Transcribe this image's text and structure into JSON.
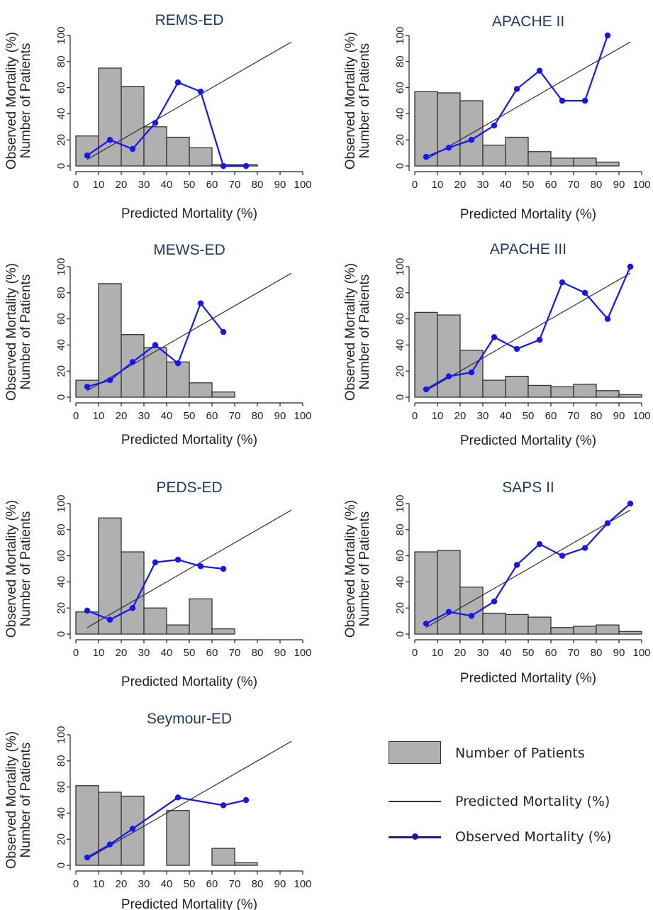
{
  "colors": {
    "bar_fill": "#b0b0b0",
    "bar_stroke": "#333333",
    "reference_line": "#333333",
    "observed": "#1414ff",
    "title": "#1f3864",
    "axis_text": "#222222"
  },
  "legend": {
    "patients": "Number of Patients",
    "predicted": "Predicted Mortality (%)",
    "observed": "Observed Mortality (%)"
  },
  "chart_data": [
    {
      "type": "bar+line",
      "title": "REMS-ED",
      "xlabel": "Predicted Mortality (%)",
      "ylabel_1": "Observed Mortality (%)",
      "ylabel_2": "Number of Patients",
      "xlim": [
        0,
        100
      ],
      "ylim": [
        0,
        100
      ],
      "xticks": [
        "0",
        "10",
        "20",
        "30",
        "40",
        "50",
        "60",
        "70",
        "80",
        "90",
        "100"
      ],
      "yticks": [
        "0",
        "20",
        "40",
        "60",
        "80",
        "100"
      ],
      "bars": [
        {
          "start": 0,
          "end": 10,
          "value": 23
        },
        {
          "start": 10,
          "end": 20,
          "value": 75
        },
        {
          "start": 20,
          "end": 30,
          "value": 61
        },
        {
          "start": 30,
          "end": 40,
          "value": 30
        },
        {
          "start": 40,
          "end": 50,
          "value": 22
        },
        {
          "start": 50,
          "end": 60,
          "value": 14
        },
        {
          "start": 60,
          "end": 70,
          "value": 1
        },
        {
          "start": 70,
          "end": 80,
          "value": 1
        }
      ],
      "observed": {
        "x": [
          5,
          15,
          25,
          35,
          45,
          55,
          65,
          75
        ],
        "y": [
          8,
          20,
          13,
          33,
          64,
          57,
          0,
          0
        ]
      },
      "reference": {
        "x": [
          5,
          95
        ],
        "y": [
          5,
          95
        ]
      }
    },
    {
      "type": "bar+line",
      "title": "APACHE II",
      "xlabel": "Predicted Mortality (%)",
      "ylabel_1": "Observed Mortality (%)",
      "ylabel_2": "Number of Patients",
      "xlim": [
        0,
        100
      ],
      "ylim": [
        0,
        100
      ],
      "xticks": [
        "0",
        "10",
        "20",
        "30",
        "40",
        "50",
        "60",
        "70",
        "80",
        "90",
        "100"
      ],
      "yticks": [
        "0",
        "20",
        "40",
        "60",
        "80",
        "100"
      ],
      "bars": [
        {
          "start": 0,
          "end": 10,
          "value": 57
        },
        {
          "start": 10,
          "end": 20,
          "value": 56
        },
        {
          "start": 20,
          "end": 30,
          "value": 50
        },
        {
          "start": 30,
          "end": 40,
          "value": 16
        },
        {
          "start": 40,
          "end": 50,
          "value": 22
        },
        {
          "start": 50,
          "end": 60,
          "value": 11
        },
        {
          "start": 60,
          "end": 70,
          "value": 6
        },
        {
          "start": 70,
          "end": 80,
          "value": 6
        },
        {
          "start": 80,
          "end": 90,
          "value": 3
        }
      ],
      "observed": {
        "x": [
          5,
          15,
          25,
          35,
          45,
          55,
          65,
          75,
          85
        ],
        "y": [
          7,
          14,
          20,
          31,
          59,
          73,
          50,
          50,
          100
        ]
      },
      "reference": {
        "x": [
          5,
          95
        ],
        "y": [
          5,
          95
        ]
      }
    },
    {
      "type": "bar+line",
      "title": "MEWS-ED",
      "xlabel": "Predicted Mortality (%)",
      "ylabel_1": "Observed Mortality (%)",
      "ylabel_2": "Number of Patients",
      "xlim": [
        0,
        100
      ],
      "ylim": [
        0,
        100
      ],
      "xticks": [
        "0",
        "10",
        "20",
        "30",
        "40",
        "50",
        "60",
        "70",
        "80",
        "90",
        "100"
      ],
      "yticks": [
        "0",
        "20",
        "40",
        "60",
        "80",
        "100"
      ],
      "bars": [
        {
          "start": 0,
          "end": 10,
          "value": 13
        },
        {
          "start": 10,
          "end": 20,
          "value": 87
        },
        {
          "start": 20,
          "end": 30,
          "value": 48
        },
        {
          "start": 30,
          "end": 40,
          "value": 38
        },
        {
          "start": 40,
          "end": 50,
          "value": 27
        },
        {
          "start": 50,
          "end": 60,
          "value": 11
        },
        {
          "start": 60,
          "end": 70,
          "value": 4
        }
      ],
      "observed": {
        "x": [
          5,
          15,
          25,
          35,
          45,
          55,
          65
        ],
        "y": [
          8,
          13,
          27,
          40,
          26,
          72,
          50
        ]
      },
      "reference": {
        "x": [
          5,
          95
        ],
        "y": [
          5,
          95
        ]
      }
    },
    {
      "type": "bar+line",
      "title": "APACHE III",
      "xlabel": "Predicted Mortality (%)",
      "ylabel_1": "Observed Mortality (%)",
      "ylabel_2": "Number of Patients",
      "xlim": [
        0,
        100
      ],
      "ylim": [
        0,
        100
      ],
      "xticks": [
        "0",
        "10",
        "20",
        "30",
        "40",
        "50",
        "60",
        "70",
        "80",
        "90",
        "100"
      ],
      "yticks": [
        "0",
        "20",
        "40",
        "60",
        "80",
        "100"
      ],
      "bars": [
        {
          "start": 0,
          "end": 10,
          "value": 65
        },
        {
          "start": 10,
          "end": 20,
          "value": 63
        },
        {
          "start": 20,
          "end": 30,
          "value": 36
        },
        {
          "start": 30,
          "end": 40,
          "value": 13
        },
        {
          "start": 40,
          "end": 50,
          "value": 16
        },
        {
          "start": 50,
          "end": 60,
          "value": 9
        },
        {
          "start": 60,
          "end": 70,
          "value": 8
        },
        {
          "start": 70,
          "end": 80,
          "value": 10
        },
        {
          "start": 80,
          "end": 90,
          "value": 5
        },
        {
          "start": 90,
          "end": 100,
          "value": 2
        }
      ],
      "observed": {
        "x": [
          5,
          15,
          25,
          35,
          45,
          55,
          65,
          75,
          85,
          95
        ],
        "y": [
          6,
          16,
          19,
          46,
          37,
          44,
          88,
          80,
          60,
          100
        ]
      },
      "reference": {
        "x": [
          5,
          95
        ],
        "y": [
          5,
          95
        ]
      }
    },
    {
      "type": "bar+line",
      "title": "PEDS-ED",
      "xlabel": "Predicted Mortality (%)",
      "ylabel_1": "Observed Mortality (%)",
      "ylabel_2": "Number of Patients",
      "xlim": [
        0,
        100
      ],
      "ylim": [
        0,
        100
      ],
      "xticks": [
        "0",
        "10",
        "20",
        "30",
        "40",
        "50",
        "60",
        "70",
        "80",
        "90",
        "100"
      ],
      "yticks": [
        "0",
        "20",
        "40",
        "60",
        "80",
        "100"
      ],
      "bars": [
        {
          "start": 0,
          "end": 10,
          "value": 17
        },
        {
          "start": 10,
          "end": 20,
          "value": 89
        },
        {
          "start": 20,
          "end": 30,
          "value": 63
        },
        {
          "start": 30,
          "end": 40,
          "value": 20
        },
        {
          "start": 40,
          "end": 50,
          "value": 7
        },
        {
          "start": 50,
          "end": 60,
          "value": 27
        },
        {
          "start": 60,
          "end": 70,
          "value": 4
        }
      ],
      "observed": {
        "x": [
          5,
          15,
          25,
          35,
          45,
          55,
          65
        ],
        "y": [
          18,
          11,
          20,
          55,
          57,
          52,
          50
        ]
      },
      "reference": {
        "x": [
          5,
          95
        ],
        "y": [
          5,
          95
        ]
      }
    },
    {
      "type": "bar+line",
      "title": "SAPS II",
      "xlabel": "Predicted Mortality (%)",
      "ylabel_1": "Observed Mortality (%)",
      "ylabel_2": "Number of Patients",
      "xlim": [
        0,
        100
      ],
      "ylim": [
        0,
        100
      ],
      "xticks": [
        "0",
        "10",
        "20",
        "30",
        "40",
        "50",
        "60",
        "70",
        "80",
        "90",
        "100"
      ],
      "yticks": [
        "0",
        "20",
        "40",
        "60",
        "80",
        "100"
      ],
      "bars": [
        {
          "start": 0,
          "end": 10,
          "value": 63
        },
        {
          "start": 10,
          "end": 20,
          "value": 64
        },
        {
          "start": 20,
          "end": 30,
          "value": 36
        },
        {
          "start": 30,
          "end": 40,
          "value": 16
        },
        {
          "start": 40,
          "end": 50,
          "value": 15
        },
        {
          "start": 50,
          "end": 60,
          "value": 13
        },
        {
          "start": 60,
          "end": 70,
          "value": 5
        },
        {
          "start": 70,
          "end": 80,
          "value": 6
        },
        {
          "start": 80,
          "end": 90,
          "value": 7
        },
        {
          "start": 90,
          "end": 100,
          "value": 2
        }
      ],
      "observed": {
        "x": [
          5,
          15,
          25,
          35,
          45,
          55,
          65,
          75,
          85,
          95
        ],
        "y": [
          8,
          17,
          14,
          25,
          53,
          69,
          60,
          66,
          85,
          100
        ]
      },
      "reference": {
        "x": [
          5,
          95
        ],
        "y": [
          5,
          95
        ]
      }
    },
    {
      "type": "bar+line",
      "title": "Seymour-ED",
      "xlabel": "Predicted Mortality (%)",
      "ylabel_1": "Observed Mortality (%)",
      "ylabel_2": "Number of Patients",
      "xlim": [
        0,
        100
      ],
      "ylim": [
        0,
        100
      ],
      "xticks": [
        "0",
        "10",
        "20",
        "30",
        "40",
        "50",
        "60",
        "70",
        "80",
        "90",
        "100"
      ],
      "yticks": [
        "0",
        "20",
        "40",
        "60",
        "80",
        "100"
      ],
      "bars": [
        {
          "start": 0,
          "end": 10,
          "value": 61
        },
        {
          "start": 10,
          "end": 20,
          "value": 56
        },
        {
          "start": 20,
          "end": 30,
          "value": 53
        },
        {
          "start": 40,
          "end": 50,
          "value": 42
        },
        {
          "start": 60,
          "end": 70,
          "value": 13
        },
        {
          "start": 70,
          "end": 80,
          "value": 2
        }
      ],
      "observed": {
        "x": [
          5,
          15,
          25,
          45,
          65,
          75
        ],
        "y": [
          6,
          16,
          28,
          52,
          46,
          50
        ]
      },
      "reference": {
        "x": [
          5,
          95
        ],
        "y": [
          5,
          95
        ]
      }
    }
  ]
}
